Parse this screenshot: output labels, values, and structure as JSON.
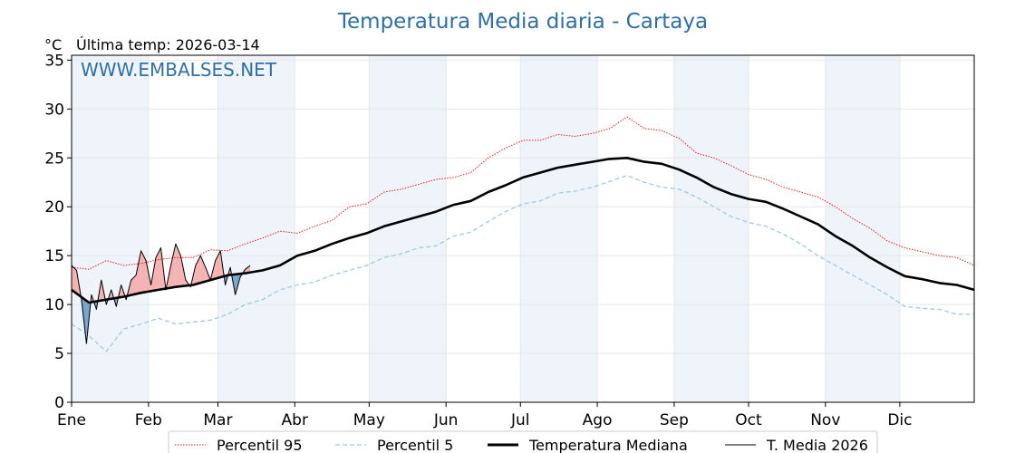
{
  "title": "Temperatura Media diaria - Cartaya",
  "unit_label": "°C",
  "last_temp_label": "Última temp: 2026-03-14",
  "watermark": "WWW.EMBALSES.NET",
  "chart_data": {
    "type": "line",
    "x_unit": "day of year",
    "xlim": [
      1,
      365
    ],
    "ylim": [
      0,
      35.5
    ],
    "y_ticks": [
      0,
      5,
      10,
      15,
      20,
      25,
      30,
      35
    ],
    "grid": true,
    "month_labels": [
      "Ene",
      "Feb",
      "Mar",
      "Abr",
      "May",
      "Jun",
      "Jul",
      "Ago",
      "Sep",
      "Oct",
      "Nov",
      "Dic"
    ],
    "month_start_days": [
      1,
      32,
      60,
      91,
      121,
      152,
      182,
      213,
      244,
      274,
      305,
      335
    ],
    "legend_position": "bottom",
    "colors": {
      "p95": "#e31a1c",
      "p5": "#9ecae1",
      "median": "#000000",
      "current": "#000000",
      "above_fill": "#f4a6a6",
      "below_fill": "#6a9dc6",
      "band_light": "#eef4fa"
    },
    "series": [
      {
        "name": "Percentil 95",
        "style": "dotted-red",
        "x": [
          1,
          8,
          15,
          22,
          29,
          36,
          43,
          50,
          57,
          64,
          71,
          78,
          85,
          92,
          99,
          106,
          113,
          120,
          127,
          134,
          141,
          148,
          155,
          162,
          169,
          176,
          183,
          190,
          197,
          204,
          211,
          218,
          225,
          232,
          239,
          246,
          253,
          260,
          267,
          274,
          281,
          288,
          295,
          302,
          309,
          316,
          323,
          330,
          337,
          344,
          351,
          358,
          365
        ],
        "values": [
          13.8,
          13.6,
          14.5,
          14.0,
          14.2,
          14.6,
          14.8,
          14.8,
          15.6,
          15.5,
          16.2,
          16.8,
          17.5,
          17.3,
          18.0,
          18.6,
          20.0,
          20.3,
          21.5,
          21.8,
          22.3,
          22.8,
          23.0,
          23.5,
          25.0,
          26.0,
          26.8,
          26.8,
          27.4,
          27.2,
          27.5,
          28.0,
          29.2,
          28.0,
          27.8,
          27.0,
          25.5,
          25.0,
          24.2,
          23.3,
          22.8,
          22.0,
          21.5,
          21.0,
          20.0,
          18.8,
          17.8,
          16.5,
          15.8,
          15.4,
          15.0,
          14.8,
          14.0
        ]
      },
      {
        "name": "Percentil 5",
        "style": "dashed-lightblue",
        "x": [
          1,
          8,
          15,
          22,
          29,
          36,
          43,
          50,
          57,
          64,
          71,
          78,
          85,
          92,
          99,
          106,
          113,
          120,
          127,
          134,
          141,
          148,
          155,
          162,
          169,
          176,
          183,
          190,
          197,
          204,
          211,
          218,
          225,
          232,
          239,
          246,
          253,
          260,
          267,
          274,
          281,
          288,
          295,
          302,
          309,
          316,
          323,
          330,
          337,
          344,
          351,
          358,
          365
        ],
        "values": [
          8.0,
          6.8,
          5.2,
          7.5,
          8.0,
          8.6,
          8.0,
          8.2,
          8.4,
          9.0,
          10.0,
          10.5,
          11.5,
          12.0,
          12.3,
          13.0,
          13.5,
          14.0,
          14.8,
          15.2,
          15.8,
          16.0,
          17.0,
          17.4,
          18.5,
          19.5,
          20.3,
          20.6,
          21.4,
          21.6,
          22.0,
          22.6,
          23.2,
          22.5,
          22.0,
          21.8,
          21.0,
          20.0,
          19.0,
          18.4,
          18.0,
          17.2,
          16.2,
          15.0,
          14.0,
          13.0,
          12.0,
          11.0,
          9.8,
          9.6,
          9.5,
          9.0,
          9.0
        ]
      },
      {
        "name": "Temperatura Mediana",
        "style": "thick-black",
        "x": [
          1,
          8,
          15,
          22,
          29,
          36,
          43,
          50,
          57,
          64,
          71,
          78,
          85,
          92,
          99,
          106,
          113,
          120,
          127,
          134,
          141,
          148,
          155,
          162,
          169,
          176,
          183,
          190,
          197,
          204,
          211,
          218,
          225,
          232,
          239,
          246,
          253,
          260,
          267,
          274,
          281,
          288,
          295,
          302,
          309,
          316,
          323,
          330,
          337,
          344,
          351,
          358,
          365
        ],
        "values": [
          11.5,
          10.2,
          10.5,
          10.8,
          11.2,
          11.5,
          11.8,
          12.0,
          12.5,
          13.0,
          13.2,
          13.5,
          14.0,
          15.0,
          15.5,
          16.2,
          16.8,
          17.3,
          18.0,
          18.5,
          19.0,
          19.5,
          20.2,
          20.6,
          21.5,
          22.2,
          23.0,
          23.5,
          24.0,
          24.3,
          24.6,
          24.9,
          25.0,
          24.6,
          24.4,
          23.8,
          23.0,
          22.0,
          21.3,
          20.8,
          20.5,
          19.8,
          19.0,
          18.2,
          17.0,
          16.0,
          14.8,
          13.8,
          12.9,
          12.6,
          12.2,
          12.0,
          11.5
        ]
      },
      {
        "name": "T. Media 2026",
        "style": "thin-black",
        "x": [
          1,
          3,
          5,
          7,
          9,
          11,
          13,
          15,
          17,
          19,
          21,
          23,
          25,
          27,
          29,
          31,
          33,
          35,
          37,
          39,
          41,
          43,
          45,
          47,
          49,
          51,
          53,
          55,
          57,
          59,
          61,
          63,
          65,
          67,
          69,
          71,
          73
        ],
        "values": [
          14.0,
          13.5,
          10.5,
          6.0,
          11.0,
          9.5,
          12.5,
          10.0,
          11.5,
          9.8,
          12.0,
          10.5,
          12.5,
          13.0,
          15.5,
          14.5,
          12.0,
          14.8,
          15.8,
          11.5,
          14.0,
          16.2,
          15.0,
          12.5,
          11.8,
          14.0,
          15.0,
          13.8,
          12.5,
          14.5,
          15.5,
          12.0,
          13.8,
          11.0,
          12.8,
          13.6,
          14.0
        ]
      }
    ],
    "legend": [
      "Percentil 95",
      "Percentil 5",
      "Temperatura Mediana",
      "T. Media 2026"
    ]
  }
}
